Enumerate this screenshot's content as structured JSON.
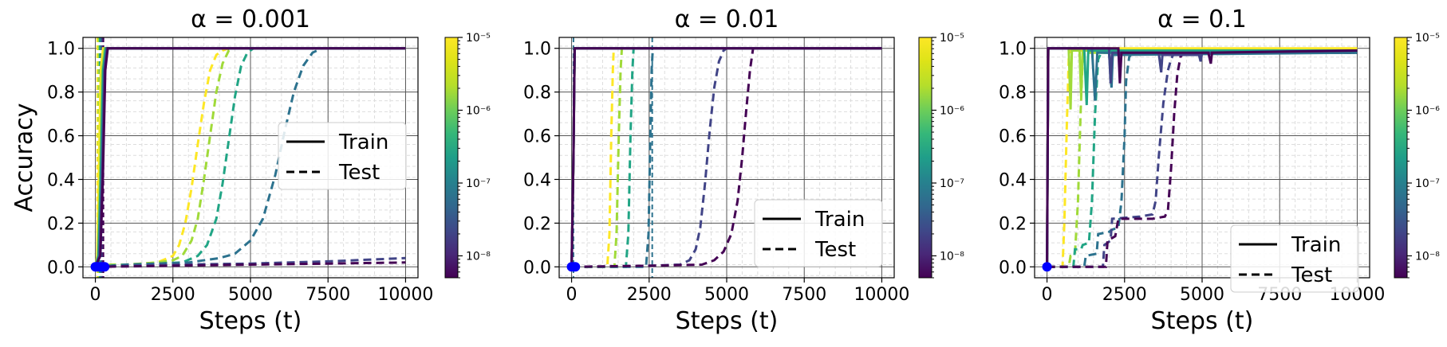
{
  "figure": {
    "ylabel": "Accuracy"
  },
  "chart_data": [
    {
      "type": "line",
      "title": "α = 0.001",
      "xlabel": "Steps (t)",
      "ylabel": "Accuracy",
      "xlim": [
        -400,
        10400
      ],
      "ylim": [
        -0.05,
        1.05
      ],
      "xticks": [
        0,
        2500,
        5000,
        7500,
        10000
      ],
      "xtick_labels": [
        "0",
        "2500",
        "5000",
        "7500",
        "10000"
      ],
      "yticks": [
        0.0,
        0.2,
        0.4,
        0.6,
        0.8,
        1.0
      ],
      "ytick_labels": [
        "0.0",
        "0.2",
        "0.4",
        "0.6",
        "0.8",
        "1.0"
      ],
      "grid": true,
      "legend": {
        "position": "center-right",
        "entries": [
          "Train",
          "Test"
        ]
      },
      "colorbar": {
        "scale": "log",
        "range": [
          5e-09,
          1e-05
        ],
        "tick_labels": [
          "10⁻⁸",
          "10⁻⁷",
          "10⁻⁶",
          "10⁻⁵"
        ],
        "tick_values": [
          1e-08,
          1e-07,
          1e-06,
          1e-05
        ]
      },
      "series": [
        {
          "lambda": 1e-05,
          "color": "#fde725",
          "train_x": [
            0,
            60,
            110,
            170,
            250,
            10000
          ],
          "train_y": [
            0.0,
            0.05,
            0.4,
            0.9,
            1.0,
            1.0
          ],
          "test_x": [
            0,
            500,
            1000,
            1500,
            2000,
            2500,
            2700,
            2900,
            3100,
            3300,
            3500,
            3700,
            3900,
            4100,
            4300,
            10000
          ],
          "test_y": [
            0.0,
            0.01,
            0.01,
            0.015,
            0.02,
            0.05,
            0.1,
            0.2,
            0.36,
            0.56,
            0.75,
            0.9,
            0.97,
            0.99,
            1.0,
            1.0
          ]
        },
        {
          "lambda": 3e-06,
          "color": "#a0da39",
          "train_x": [
            0,
            80,
            150,
            220,
            300,
            10000
          ],
          "train_y": [
            0.0,
            0.05,
            0.4,
            0.9,
            1.0,
            1.0
          ],
          "test_x": [
            0,
            500,
            1000,
            1500,
            2000,
            2500,
            2800,
            3100,
            3300,
            3500,
            3700,
            3900,
            4100,
            4300,
            4500,
            10000
          ],
          "test_y": [
            0.0,
            0.01,
            0.01,
            0.015,
            0.02,
            0.03,
            0.05,
            0.12,
            0.22,
            0.4,
            0.6,
            0.8,
            0.93,
            0.99,
            1.0,
            1.0
          ]
        },
        {
          "lambda": 1e-06,
          "color": "#21a585",
          "train_x": [
            0,
            100,
            170,
            250,
            330,
            10000
          ],
          "train_y": [
            0.0,
            0.05,
            0.4,
            0.9,
            1.0,
            1.0
          ],
          "test_x": [
            0,
            1000,
            2000,
            2800,
            3300,
            3600,
            3900,
            4100,
            4300,
            4500,
            4700,
            4900,
            5100,
            10000
          ],
          "test_y": [
            0.0,
            0.01,
            0.015,
            0.02,
            0.05,
            0.1,
            0.22,
            0.38,
            0.58,
            0.78,
            0.92,
            0.98,
            1.0,
            1.0
          ]
        },
        {
          "lambda": 1e-07,
          "color": "#2c728e",
          "train_x": [
            0,
            120,
            200,
            280,
            360,
            10000
          ],
          "train_y": [
            0.0,
            0.05,
            0.4,
            0.9,
            1.0,
            1.0
          ],
          "test_x": [
            0,
            1000,
            2000,
            3000,
            4000,
            4500,
            5000,
            5400,
            5800,
            6100,
            6400,
            6700,
            7000,
            7300,
            10000
          ],
          "test_y": [
            0.0,
            0.01,
            0.015,
            0.02,
            0.04,
            0.06,
            0.12,
            0.22,
            0.42,
            0.62,
            0.8,
            0.92,
            0.98,
            1.0,
            1.0
          ]
        },
        {
          "lambda": 2e-08,
          "color": "#414487",
          "train_x": [
            0,
            140,
            220,
            300,
            380,
            10000
          ],
          "train_y": [
            0.0,
            0.05,
            0.4,
            0.9,
            1.0,
            1.0
          ],
          "test_x": [
            0,
            2500,
            5000,
            7500,
            10000
          ],
          "test_y": [
            0.0,
            0.01,
            0.015,
            0.025,
            0.04
          ]
        },
        {
          "lambda": 5e-09,
          "color": "#440154",
          "train_x": [
            0,
            160,
            240,
            320,
            400,
            10000
          ],
          "train_y": [
            0.0,
            0.05,
            0.4,
            0.9,
            1.0,
            1.0
          ],
          "test_x": [
            0,
            2500,
            5000,
            7500,
            10000
          ],
          "test_y": [
            0.0,
            0.005,
            0.01,
            0.015,
            0.02
          ]
        }
      ],
      "markers": [
        {
          "x": 0,
          "y": 0.0
        },
        {
          "x": 60,
          "y": 0.0
        },
        {
          "x": 120,
          "y": 0.0
        },
        {
          "x": 180,
          "y": 0.0
        },
        {
          "x": 240,
          "y": 0.0
        },
        {
          "x": 300,
          "y": 0.0
        }
      ],
      "vlines": [
        {
          "x": 60,
          "color": "#fde725"
        },
        {
          "x": 100,
          "color": "#a0da39"
        },
        {
          "x": 140,
          "color": "#21a585"
        },
        {
          "x": 180,
          "color": "#2c728e"
        },
        {
          "x": 220,
          "color": "#414487"
        },
        {
          "x": 260,
          "color": "#440154"
        }
      ]
    },
    {
      "type": "line",
      "title": "α = 0.01",
      "xlabel": "Steps (t)",
      "ylabel": "",
      "xlim": [
        -400,
        10400
      ],
      "ylim": [
        -0.05,
        1.05
      ],
      "xticks": [
        0,
        2500,
        5000,
        7500,
        10000
      ],
      "xtick_labels": [
        "0",
        "2500",
        "5000",
        "7500",
        "10000"
      ],
      "yticks": [
        0.0,
        0.2,
        0.4,
        0.6,
        0.8,
        1.0
      ],
      "ytick_labels": [
        "0.0",
        "0.2",
        "0.4",
        "0.6",
        "0.8",
        "1.0"
      ],
      "grid": true,
      "legend": {
        "position": "lower-right",
        "entries": [
          "Train",
          "Test"
        ]
      },
      "colorbar": {
        "scale": "log",
        "range": [
          5e-09,
          1e-05
        ],
        "tick_labels": [
          "10⁻⁸",
          "10⁻⁷",
          "10⁻⁶",
          "10⁻⁵"
        ],
        "tick_values": [
          1e-08,
          1e-07,
          1e-06,
          1e-05
        ]
      },
      "series": [
        {
          "lambda": 1e-05,
          "color": "#fde725",
          "train_x": [
            0,
            60,
            100,
            10000
          ],
          "train_y": [
            0.0,
            0.5,
            1.0,
            1.0
          ],
          "test_x": [
            0,
            1150,
            1220,
            1280,
            1330,
            1360,
            10000
          ],
          "test_y": [
            0.0,
            0.0,
            0.15,
            0.6,
            0.9,
            1.0,
            1.0
          ]
        },
        {
          "lambda": 3e-06,
          "color": "#a0da39",
          "train_x": [
            0,
            60,
            100,
            10000
          ],
          "train_y": [
            0.0,
            0.5,
            1.0,
            1.0
          ],
          "test_x": [
            0,
            1380,
            1450,
            1520,
            1580,
            1620,
            10000
          ],
          "test_y": [
            0.0,
            0.0,
            0.15,
            0.6,
            0.9,
            1.0,
            1.0
          ]
        },
        {
          "lambda": 1e-06,
          "color": "#21a585",
          "train_x": [
            0,
            60,
            100,
            10000
          ],
          "train_y": [
            0.0,
            0.5,
            1.0,
            1.0
          ],
          "test_x": [
            0,
            1750,
            1830,
            1900,
            1960,
            2000,
            10000
          ],
          "test_y": [
            0.0,
            0.0,
            0.15,
            0.6,
            0.9,
            1.0,
            1.0
          ]
        },
        {
          "lambda": 1e-07,
          "color": "#2c728e",
          "train_x": [
            0,
            60,
            100,
            10000
          ],
          "train_y": [
            0.0,
            0.5,
            1.0,
            1.0
          ],
          "test_x": [
            0,
            2400,
            2480,
            2540,
            2580,
            2620,
            10000
          ],
          "test_y": [
            0.0,
            0.0,
            0.15,
            0.6,
            0.9,
            1.0,
            1.0
          ]
        },
        {
          "lambda": 2e-08,
          "color": "#414487",
          "train_x": [
            0,
            60,
            100,
            10000
          ],
          "train_y": [
            0.0,
            0.5,
            1.0,
            1.0
          ],
          "test_x": [
            0,
            2500,
            3500,
            3800,
            4000,
            4150,
            4300,
            4450,
            4600,
            4750,
            4900,
            5000,
            10000
          ],
          "test_y": [
            0.0,
            0.005,
            0.01,
            0.03,
            0.08,
            0.18,
            0.38,
            0.62,
            0.82,
            0.94,
            0.99,
            1.0,
            1.0
          ]
        },
        {
          "lambda": 5e-09,
          "color": "#440154",
          "train_x": [
            0,
            60,
            100,
            10000
          ],
          "train_y": [
            0.0,
            0.5,
            1.0,
            1.0
          ],
          "test_x": [
            0,
            2500,
            4200,
            4600,
            4900,
            5150,
            5350,
            5500,
            5620,
            5750,
            5850,
            10000
          ],
          "test_y": [
            0.0,
            0.005,
            0.01,
            0.03,
            0.07,
            0.15,
            0.3,
            0.5,
            0.7,
            0.9,
            1.0,
            1.0
          ]
        }
      ],
      "markers": [
        {
          "x": 0,
          "y": 0.0
        },
        {
          "x": 60,
          "y": 0.0
        },
        {
          "x": 120,
          "y": 0.0
        }
      ],
      "vlines": [
        {
          "x": 60,
          "color": "#2c728e"
        },
        {
          "x": 2600,
          "color": "#2c728e"
        }
      ]
    },
    {
      "type": "line",
      "title": "α = 0.1",
      "xlabel": "Steps (t)",
      "ylabel": "",
      "xlim": [
        -400,
        10400
      ],
      "ylim": [
        -0.05,
        1.05
      ],
      "xticks": [
        0,
        2500,
        5000,
        7500,
        10000
      ],
      "xtick_labels": [
        "0",
        "2500",
        "5000",
        "7500",
        "10000"
      ],
      "yticks": [
        0.0,
        0.2,
        0.4,
        0.6,
        0.8,
        1.0
      ],
      "ytick_labels": [
        "0.0",
        "0.2",
        "0.4",
        "0.6",
        "0.8",
        "1.0"
      ],
      "grid": true,
      "legend": {
        "position": "lower-right",
        "entries": [
          "Train",
          "Test"
        ]
      },
      "colorbar": {
        "scale": "log",
        "range": [
          5e-09,
          1e-05
        ],
        "tick_labels": [
          "10⁻⁸",
          "10⁻⁷",
          "10⁻⁶",
          "10⁻⁵"
        ],
        "tick_values": [
          1e-08,
          1e-07,
          1e-06,
          1e-05
        ]
      },
      "series": [
        {
          "lambda": 1e-05,
          "color": "#fde725",
          "train_x": [
            0,
            20,
            40,
            10000
          ],
          "train_y": [
            0.0,
            0.5,
            1.0,
            1.0
          ],
          "test_x": [
            0,
            500,
            560,
            640,
            700,
            740,
            10000
          ],
          "test_y": [
            0.0,
            0.0,
            0.2,
            0.65,
            0.95,
            0.99,
            0.99
          ]
        },
        {
          "lambda": 3e-06,
          "color": "#a0da39",
          "train_x": [
            0,
            20,
            40,
            700,
            760,
            800,
            1050,
            1100,
            1150,
            10000
          ],
          "train_y": [
            0.0,
            0.5,
            1.0,
            1.0,
            0.72,
            0.99,
            0.99,
            0.78,
            0.99,
            0.99
          ],
          "test_x": [
            0,
            700,
            760,
            800,
            900,
            1000,
            1080,
            1150,
            1250,
            10000
          ],
          "test_y": [
            0.0,
            0.0,
            0.05,
            0.05,
            0.06,
            0.3,
            0.7,
            0.95,
            0.98,
            0.98
          ]
        },
        {
          "lambda": 1e-06,
          "color": "#21a585",
          "train_x": [
            0,
            20,
            40,
            1200,
            1280,
            1330,
            10000
          ],
          "train_y": [
            0.0,
            0.5,
            1.0,
            1.0,
            0.74,
            0.99,
            0.99
          ],
          "test_x": [
            0,
            850,
            900,
            1100,
            1150,
            1350,
            1450,
            1550,
            1650,
            1750,
            10000
          ],
          "test_y": [
            0.0,
            0.0,
            0.08,
            0.08,
            0.1,
            0.11,
            0.3,
            0.7,
            0.95,
            0.98,
            0.98
          ]
        },
        {
          "lambda": 1e-07,
          "color": "#2c728e",
          "train_x": [
            0,
            20,
            40,
            1450,
            1550,
            1620,
            2000,
            2080,
            2120,
            10000
          ],
          "train_y": [
            0.0,
            0.5,
            1.0,
            1.0,
            0.76,
            0.98,
            0.98,
            0.82,
            0.97,
            0.98
          ],
          "test_x": [
            0,
            1200,
            1250,
            1600,
            1650,
            2000,
            2100,
            2300,
            2400,
            2500,
            2550,
            2650,
            2750,
            2850,
            10000
          ],
          "test_y": [
            0.0,
            0.0,
            0.05,
            0.06,
            0.15,
            0.16,
            0.17,
            0.18,
            0.3,
            0.6,
            0.85,
            0.96,
            0.98,
            0.98,
            0.98
          ]
        },
        {
          "lambda": 2e-08,
          "color": "#414487",
          "train_x": [
            0,
            20,
            40,
            2000,
            2050,
            2100,
            3600,
            3680,
            3720,
            4900,
            4950,
            5000,
            10000
          ],
          "train_y": [
            0.0,
            0.5,
            1.0,
            1.0,
            0.84,
            0.98,
            0.98,
            0.89,
            0.97,
            0.97,
            0.94,
            0.98,
            0.99
          ],
          "test_x": [
            0,
            1800,
            1850,
            2050,
            2100,
            3000,
            3400,
            3500,
            3600,
            3750,
            3900,
            4000,
            4100,
            10000
          ],
          "test_y": [
            0.0,
            0.0,
            0.1,
            0.12,
            0.22,
            0.23,
            0.24,
            0.3,
            0.5,
            0.75,
            0.9,
            0.95,
            0.98,
            0.98
          ]
        },
        {
          "lambda": 5e-09,
          "color": "#440154",
          "train_x": [
            0,
            20,
            40,
            2300,
            2350,
            2400,
            5200,
            5280,
            5320,
            10000
          ],
          "train_y": [
            0.0,
            0.5,
            1.0,
            1.0,
            0.84,
            0.98,
            0.98,
            0.93,
            0.98,
            0.99
          ],
          "test_x": [
            0,
            1900,
            1950,
            2200,
            2300,
            3400,
            3800,
            3900,
            4000,
            4100,
            4200,
            4300,
            4400,
            10000
          ],
          "test_y": [
            0.0,
            0.0,
            0.12,
            0.14,
            0.22,
            0.22,
            0.23,
            0.26,
            0.45,
            0.7,
            0.88,
            0.96,
            0.98,
            0.98
          ]
        }
      ],
      "markers": [
        {
          "x": 0,
          "y": 0.0
        }
      ],
      "vlines": []
    }
  ]
}
